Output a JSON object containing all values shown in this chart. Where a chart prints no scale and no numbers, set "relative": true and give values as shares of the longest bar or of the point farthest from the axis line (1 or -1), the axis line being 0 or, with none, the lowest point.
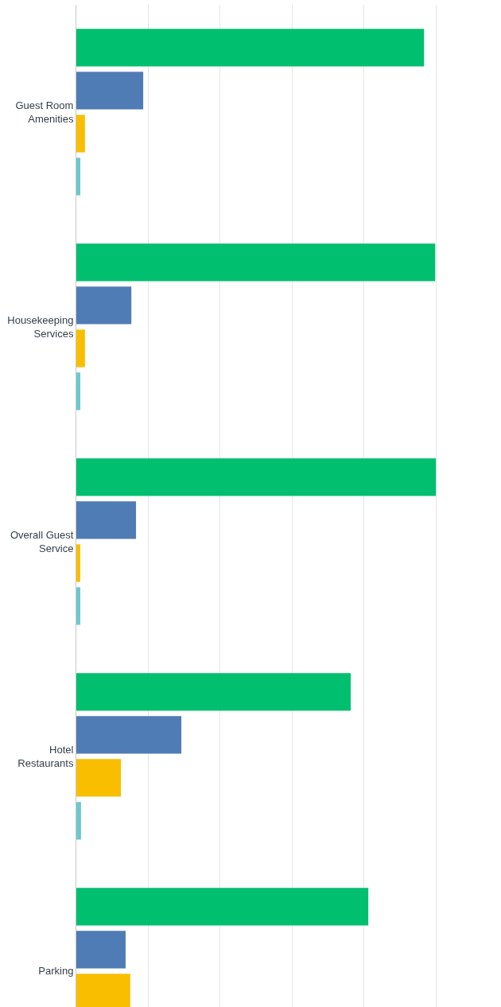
{
  "chart_data": {
    "type": "bar",
    "orientation": "horizontal",
    "relative": true,
    "grid": "x",
    "categories": [
      "Guest Room Amenities",
      "Housekeeping Services",
      "Overall Guest Service",
      "Hotel Restaurants",
      "Parking"
    ],
    "series": [
      {
        "color": "#00bf6f",
        "values": [
          0.967,
          0.998,
          1,
          0.763,
          0.812
        ]
      },
      {
        "color": "#507cb6",
        "values": [
          0.186,
          0.153,
          0.166,
          0.292,
          0.137
        ]
      },
      {
        "color": "#f9be00",
        "values": [
          0.024,
          0.024,
          0.011,
          0.124,
          0.15
        ]
      },
      {
        "color": "#6bc8cd",
        "values": [
          0.011,
          0.011,
          0.011,
          0.013,
          null
        ]
      }
    ]
  }
}
